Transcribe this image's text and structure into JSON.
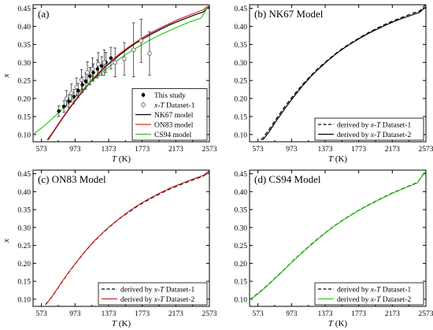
{
  "chart_data": [
    {
      "panel": "(a)",
      "type": "line",
      "title": "",
      "xlabel": "T (K)",
      "ylabel": "x",
      "xlim": [
        473,
        2573
      ],
      "ylim": [
        0.08,
        0.46
      ],
      "xticks": [
        573,
        973,
        1373,
        1773,
        2173,
        2573
      ],
      "yticks": [
        0.1,
        0.15,
        0.2,
        0.25,
        0.3,
        0.35,
        0.4,
        0.45
      ],
      "legend_position": "bottom-right",
      "scatter": [
        {
          "name": "This study",
          "marker": "filled-circle",
          "points": [
            {
              "x": 780,
              "y": 0.165,
              "err": 0.015
            },
            {
              "x": 840,
              "y": 0.178,
              "err": 0.016
            },
            {
              "x": 900,
              "y": 0.192,
              "err": 0.018
            },
            {
              "x": 960,
              "y": 0.205,
              "err": 0.02
            },
            {
              "x": 1010,
              "y": 0.222,
              "err": 0.02
            },
            {
              "x": 1060,
              "y": 0.238,
              "err": 0.022
            },
            {
              "x": 1100,
              "y": 0.248,
              "err": 0.022
            },
            {
              "x": 1150,
              "y": 0.262,
              "err": 0.024
            },
            {
              "x": 1190,
              "y": 0.272,
              "err": 0.024
            },
            {
              "x": 1240,
              "y": 0.282,
              "err": 0.025
            },
            {
              "x": 1290,
              "y": 0.29,
              "err": 0.026
            },
            {
              "x": 1340,
              "y": 0.3,
              "err": 0.028
            },
            {
              "x": 1400,
              "y": 0.312,
              "err": 0.03
            }
          ]
        },
        {
          "name": "x-T Dataset-1",
          "marker": "open-circle",
          "points": [
            {
              "x": 870,
              "y": 0.2,
              "err": 0.022
            },
            {
              "x": 930,
              "y": 0.215,
              "err": 0.025
            },
            {
              "x": 990,
              "y": 0.232,
              "err": 0.025
            },
            {
              "x": 1050,
              "y": 0.252,
              "err": 0.028
            },
            {
              "x": 1120,
              "y": 0.272,
              "err": 0.03
            },
            {
              "x": 1180,
              "y": 0.282,
              "err": 0.03
            },
            {
              "x": 1250,
              "y": 0.295,
              "err": 0.032
            },
            {
              "x": 1320,
              "y": 0.3,
              "err": 0.035
            },
            {
              "x": 1450,
              "y": 0.3,
              "err": 0.04
            },
            {
              "x": 1560,
              "y": 0.31,
              "err": 0.045
            },
            {
              "x": 1670,
              "y": 0.335,
              "err": 0.075
            },
            {
              "x": 1760,
              "y": 0.36,
              "err": 0.06
            },
            {
              "x": 1860,
              "y": 0.325,
              "err": 0.06
            }
          ]
        }
      ],
      "series": [
        {
          "name": "NK67 model",
          "color": "#000000",
          "style": "solid",
          "x": [
            650,
            700,
            800,
            900,
            1000,
            1100,
            1200,
            1300,
            1400,
            1500,
            1600,
            1700,
            1800,
            1900,
            2000,
            2100,
            2200,
            2300,
            2400,
            2500,
            2573
          ],
          "y": [
            0.085,
            0.102,
            0.137,
            0.17,
            0.201,
            0.23,
            0.256,
            0.28,
            0.301,
            0.32,
            0.338,
            0.354,
            0.368,
            0.381,
            0.393,
            0.404,
            0.414,
            0.423,
            0.432,
            0.44,
            0.455
          ]
        },
        {
          "name": "ON83 model",
          "color": "#d62728",
          "style": "solid",
          "x": [
            640,
            700,
            800,
            900,
            1000,
            1100,
            1200,
            1300,
            1400,
            1500,
            1600,
            1700,
            1800,
            1900,
            2000,
            2100,
            2200,
            2300,
            2400,
            2500,
            2573
          ],
          "y": [
            0.085,
            0.104,
            0.139,
            0.172,
            0.203,
            0.232,
            0.258,
            0.282,
            0.303,
            0.323,
            0.341,
            0.357,
            0.372,
            0.385,
            0.397,
            0.408,
            0.419,
            0.428,
            0.437,
            0.446,
            0.459
          ]
        },
        {
          "name": "CS94 model",
          "color": "#2ecc1a",
          "style": "solid",
          "x": [
            473,
            573,
            673,
            773,
            873,
            973,
            1073,
            1173,
            1273,
            1373,
            1473,
            1573,
            1673,
            1773,
            1873,
            1973,
            2073,
            2173,
            2273,
            2373,
            2473,
            2573
          ],
          "y": [
            0.1,
            0.118,
            0.138,
            0.16,
            0.182,
            0.205,
            0.227,
            0.248,
            0.268,
            0.287,
            0.305,
            0.321,
            0.336,
            0.35,
            0.363,
            0.375,
            0.386,
            0.396,
            0.406,
            0.415,
            0.423,
            0.46
          ]
        }
      ]
    },
    {
      "panel": "(b)",
      "type": "line",
      "title": "NK67 Model",
      "xlabel": "T (K)",
      "ylabel": "",
      "xlim": [
        473,
        2573
      ],
      "ylim": [
        0.08,
        0.46
      ],
      "xticks": [
        573,
        973,
        1373,
        1773,
        2173,
        2573
      ],
      "yticks": [
        0.1,
        0.15,
        0.2,
        0.25,
        0.3,
        0.35,
        0.4,
        0.45
      ],
      "legend_position": "bottom-right",
      "series": [
        {
          "name": "derived by x-T Dataset-1",
          "color": "#000000",
          "style": "dashed",
          "x": [
            610,
            700,
            800,
            900,
            1000,
            1100,
            1200,
            1300,
            1400,
            1500,
            1600,
            1700,
            1800,
            1900,
            2000,
            2100,
            2200,
            2300,
            2400,
            2500,
            2573
          ],
          "y": [
            0.085,
            0.112,
            0.147,
            0.18,
            0.21,
            0.238,
            0.263,
            0.286,
            0.306,
            0.325,
            0.342,
            0.357,
            0.371,
            0.384,
            0.396,
            0.407,
            0.417,
            0.426,
            0.435,
            0.443,
            0.462
          ]
        },
        {
          "name": "derived by x-T Dataset-2",
          "color": "#000000",
          "style": "solid",
          "x": [
            630,
            700,
            800,
            900,
            1000,
            1100,
            1200,
            1300,
            1400,
            1500,
            1600,
            1700,
            1800,
            1900,
            2000,
            2100,
            2200,
            2300,
            2400,
            2500,
            2573
          ],
          "y": [
            0.085,
            0.106,
            0.141,
            0.174,
            0.205,
            0.234,
            0.26,
            0.283,
            0.304,
            0.323,
            0.34,
            0.355,
            0.369,
            0.382,
            0.393,
            0.404,
            0.414,
            0.423,
            0.431,
            0.439,
            0.455
          ]
        }
      ]
    },
    {
      "panel": "(c)",
      "type": "line",
      "title": "ON83 Model",
      "xlabel": "T (K)",
      "ylabel": "x",
      "xlim": [
        473,
        2573
      ],
      "ylim": [
        0.08,
        0.46
      ],
      "xticks": [
        573,
        973,
        1373,
        1773,
        2173,
        2573
      ],
      "yticks": [
        0.1,
        0.15,
        0.2,
        0.25,
        0.3,
        0.35,
        0.4,
        0.45
      ],
      "legend_position": "bottom-right",
      "series": [
        {
          "name": "derived by x-T Dataset-1",
          "color": "#000000",
          "style": "dashed",
          "x": [
            620,
            700,
            800,
            900,
            1000,
            1100,
            1200,
            1300,
            1400,
            1500,
            1600,
            1700,
            1800,
            1900,
            2000,
            2100,
            2200,
            2300,
            2400,
            2500,
            2573
          ],
          "y": [
            0.085,
            0.107,
            0.142,
            0.175,
            0.206,
            0.235,
            0.261,
            0.284,
            0.305,
            0.324,
            0.341,
            0.357,
            0.371,
            0.384,
            0.396,
            0.407,
            0.417,
            0.426,
            0.435,
            0.443,
            0.457
          ]
        },
        {
          "name": "derived by x-T Dataset-2",
          "color": "#d62728",
          "style": "solid",
          "x": [
            625,
            700,
            800,
            900,
            1000,
            1100,
            1200,
            1300,
            1400,
            1500,
            1600,
            1700,
            1800,
            1900,
            2000,
            2100,
            2200,
            2300,
            2400,
            2500,
            2573
          ],
          "y": [
            0.085,
            0.108,
            0.143,
            0.176,
            0.207,
            0.236,
            0.262,
            0.285,
            0.306,
            0.325,
            0.343,
            0.359,
            0.373,
            0.386,
            0.398,
            0.409,
            0.419,
            0.428,
            0.437,
            0.445,
            0.459
          ]
        }
      ]
    },
    {
      "panel": "(d)",
      "type": "line",
      "title": "CS94 Model",
      "xlabel": "T (K)",
      "ylabel": "",
      "xlim": [
        473,
        2573
      ],
      "ylim": [
        0.08,
        0.46
      ],
      "xticks": [
        573,
        973,
        1373,
        1773,
        2173,
        2573
      ],
      "yticks": [
        0.1,
        0.15,
        0.2,
        0.25,
        0.3,
        0.35,
        0.4,
        0.45
      ],
      "legend_position": "bottom-right",
      "series": [
        {
          "name": "derived by x-T Dataset-1",
          "color": "#000000",
          "style": "dashed",
          "x": [
            473,
            573,
            673,
            773,
            873,
            973,
            1073,
            1173,
            1273,
            1373,
            1473,
            1573,
            1673,
            1773,
            1873,
            1973,
            2073,
            2173,
            2273,
            2373,
            2473,
            2573
          ],
          "y": [
            0.098,
            0.116,
            0.136,
            0.158,
            0.18,
            0.203,
            0.225,
            0.246,
            0.266,
            0.285,
            0.303,
            0.319,
            0.334,
            0.348,
            0.361,
            0.373,
            0.385,
            0.396,
            0.406,
            0.416,
            0.425,
            0.459
          ]
        },
        {
          "name": "derived by x-T Dataset-2",
          "color": "#2ecc1a",
          "style": "solid",
          "x": [
            473,
            573,
            673,
            773,
            873,
            973,
            1073,
            1173,
            1273,
            1373,
            1473,
            1573,
            1673,
            1773,
            1873,
            1973,
            2073,
            2173,
            2273,
            2373,
            2473,
            2573
          ],
          "y": [
            0.097,
            0.115,
            0.135,
            0.157,
            0.179,
            0.202,
            0.224,
            0.245,
            0.265,
            0.284,
            0.302,
            0.318,
            0.333,
            0.347,
            0.36,
            0.372,
            0.384,
            0.395,
            0.405,
            0.415,
            0.424,
            0.458
          ]
        }
      ]
    }
  ]
}
